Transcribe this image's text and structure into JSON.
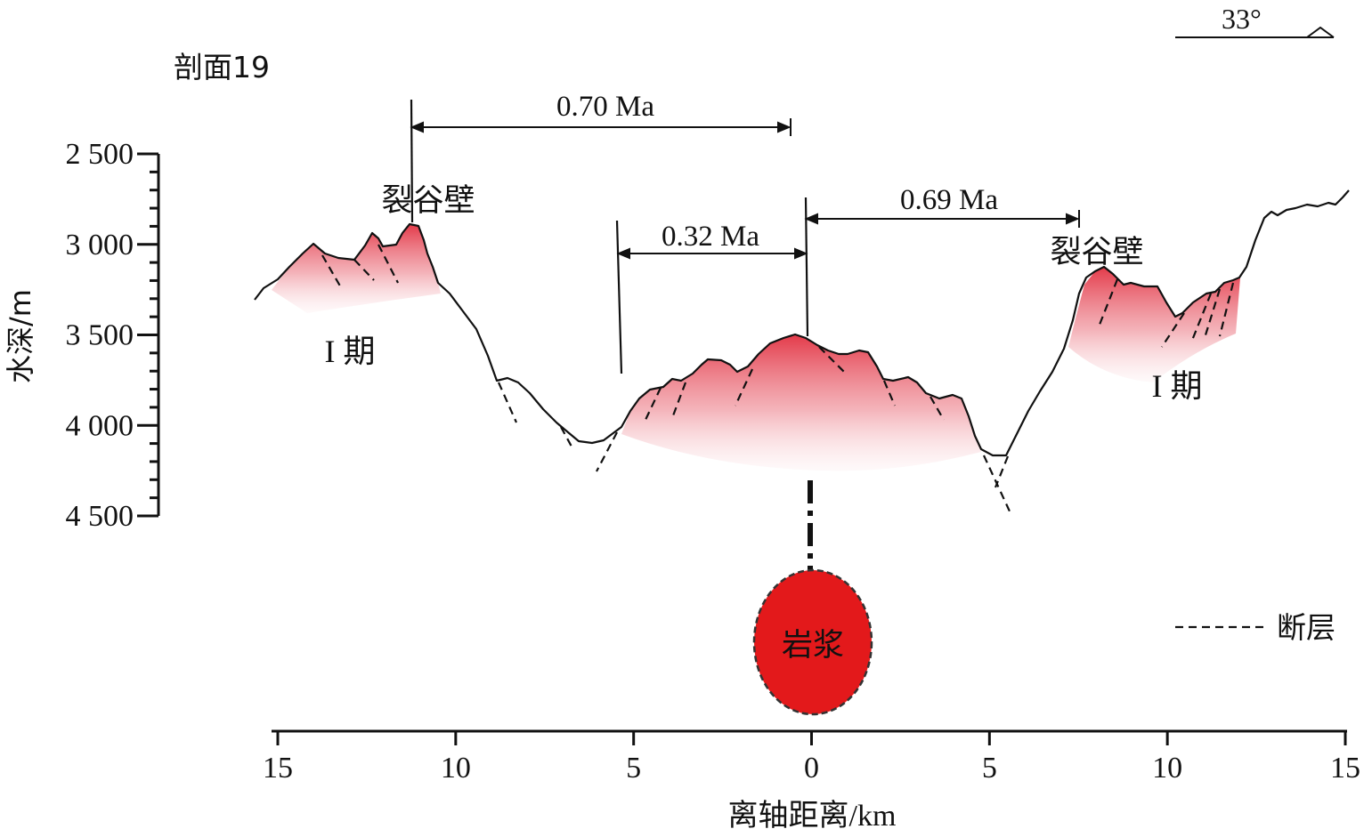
{
  "profile_label": "剖面19",
  "direction": {
    "label": "33°"
  },
  "y_axis": {
    "label": "水深/m",
    "ticks": [
      {
        "value": 2500,
        "label": "2 500"
      },
      {
        "value": 3000,
        "label": "3 000"
      },
      {
        "value": 3500,
        "label": "3 500"
      },
      {
        "value": 4000,
        "label": "4 000"
      },
      {
        "value": 4500,
        "label": "4 500"
      }
    ]
  },
  "x_axis": {
    "label": "离轴距离/km",
    "ticks": [
      {
        "value": -15,
        "label": "15"
      },
      {
        "value": -10,
        "label": "10"
      },
      {
        "value": -5,
        "label": "5"
      },
      {
        "value": 0,
        "label": "0"
      },
      {
        "value": 5,
        "label": "5"
      },
      {
        "value": 10,
        "label": "10"
      },
      {
        "value": 15,
        "label": "15"
      }
    ]
  },
  "intervals": [
    {
      "id": "age-070",
      "label": "0.70 Ma"
    },
    {
      "id": "age-032",
      "label": "0.32 Ma"
    },
    {
      "id": "age-069",
      "label": "0.69 Ma"
    }
  ],
  "annotations": {
    "rift_wall_left": "裂谷壁",
    "rift_wall_right": "裂谷壁",
    "phase_left": "I 期",
    "phase_right": "I 期",
    "magma": "岩浆"
  },
  "legend": {
    "fault_label": "断层"
  },
  "colors": {
    "magma_fill": "#e3191b",
    "volcano_red": "#e23040",
    "line": "#111111"
  }
}
